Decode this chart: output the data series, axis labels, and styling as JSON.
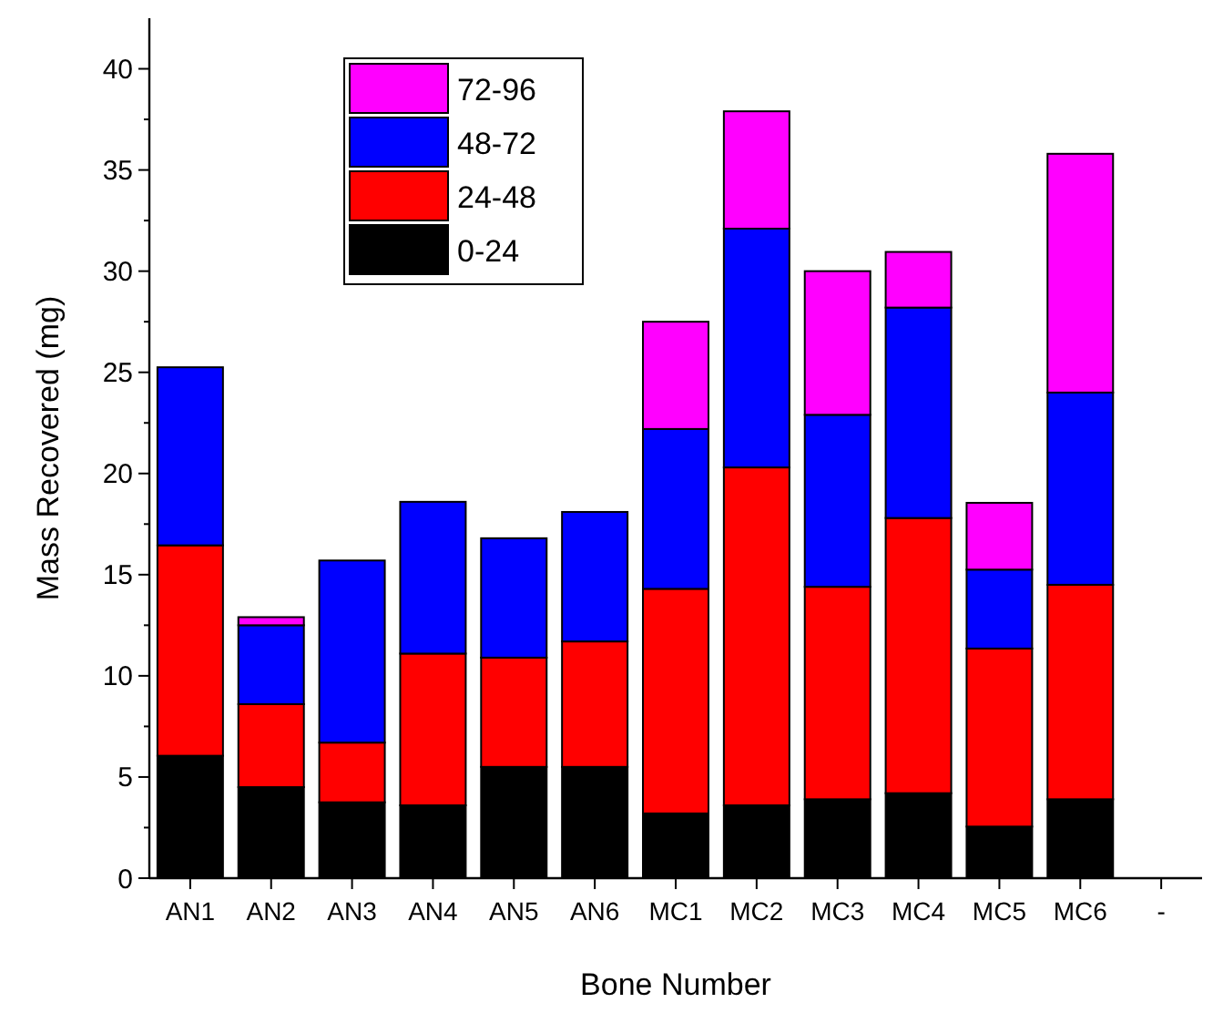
{
  "chart_data": {
    "type": "bar",
    "stacked": true,
    "xlabel": "Bone Number",
    "ylabel": "Mass Recovered (mg)",
    "categories": [
      "AN1",
      "AN2",
      "AN3",
      "AN4",
      "AN5",
      "AN6",
      "MC1",
      "MC2",
      "MC3",
      "MC4",
      "MC5",
      "MC6",
      "-"
    ],
    "series": [
      {
        "name": "0-24",
        "color": "#000000",
        "values": [
          6.05,
          4.5,
          3.75,
          3.6,
          5.5,
          5.5,
          3.2,
          3.6,
          3.9,
          4.2,
          2.55,
          3.9,
          null
        ]
      },
      {
        "name": "24-48",
        "color": "#ff0000",
        "values": [
          10.4,
          4.1,
          2.95,
          7.5,
          5.4,
          6.2,
          11.1,
          16.7,
          10.5,
          13.6,
          8.8,
          10.6,
          null
        ]
      },
      {
        "name": "48-72",
        "color": "#0000ff",
        "values": [
          8.8,
          3.9,
          9.0,
          7.5,
          5.9,
          6.4,
          7.9,
          11.8,
          8.5,
          10.4,
          3.9,
          9.5,
          null
        ]
      },
      {
        "name": "72-96",
        "color": "#ff00ff",
        "values": [
          null,
          0.4,
          null,
          null,
          null,
          null,
          5.3,
          5.8,
          7.1,
          2.75,
          3.3,
          11.8,
          null
        ]
      }
    ],
    "ylim": [
      0,
      42.5
    ],
    "yticks": [
      0,
      {
        "value": 2.5,
        "label": null
      },
      5,
      {
        "value": 7.5,
        "label": null
      },
      10,
      {
        "value": 12.5,
        "label": null
      },
      15,
      {
        "value": 17.5,
        "label": null
      },
      20,
      {
        "value": 22.5,
        "label": null
      },
      25,
      {
        "value": 27.5,
        "label": null
      },
      30,
      {
        "value": 32.5,
        "label": null
      },
      35,
      {
        "value": 37.5,
        "label": null
      },
      40
    ],
    "grid": false,
    "legend": "top left"
  }
}
